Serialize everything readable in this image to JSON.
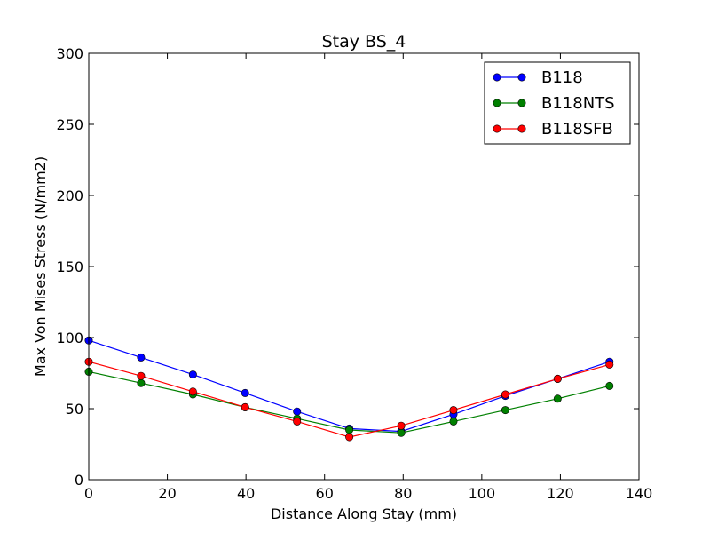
{
  "chart_data": {
    "type": "line",
    "title": "Stay BS_4",
    "xlabel": "Distance Along Stay (mm)",
    "ylabel": "Max Von Mises Stress (N/mm2)",
    "xlim": [
      0,
      140
    ],
    "ylim": [
      0,
      300
    ],
    "xticks": [
      "0",
      "20",
      "40",
      "60",
      "80",
      "100",
      "120",
      "140"
    ],
    "yticks": [
      "0",
      "50",
      "100",
      "150",
      "200",
      "250",
      "300"
    ],
    "grid": false,
    "legend_position": "top-right",
    "x": [
      0,
      13.3,
      26.5,
      39.8,
      53.0,
      66.3,
      79.5,
      92.8,
      106.0,
      119.3,
      132.5
    ],
    "series": [
      {
        "name": "B118",
        "color": "#0000ff",
        "values": [
          98,
          86,
          74,
          61,
          48,
          36,
          34,
          46,
          59,
          71,
          83
        ]
      },
      {
        "name": "B118NTS",
        "color": "#008000",
        "values": [
          76,
          68,
          60,
          51,
          43,
          35,
          33,
          41,
          49,
          57,
          66
        ]
      },
      {
        "name": "B118SFB",
        "color": "#ff0000",
        "values": [
          83,
          73,
          62,
          51,
          41,
          30,
          38,
          49,
          60,
          71,
          81
        ]
      }
    ]
  }
}
